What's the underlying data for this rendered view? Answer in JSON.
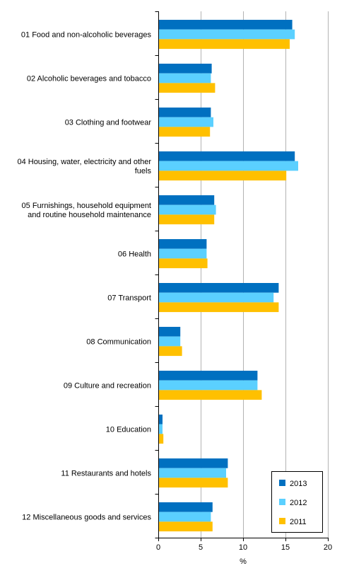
{
  "chart_data": {
    "type": "bar",
    "orientation": "horizontal",
    "categories": [
      [
        "01 Food and non-alcoholic beverages"
      ],
      [
        "02 Alcoholic beverages and tobacco"
      ],
      [
        "03 Clothing and footwear"
      ],
      [
        "04 Housing, water, electricity and other",
        "fuels"
      ],
      [
        "05 Furnishings, household equipment",
        "and routine household maintenance"
      ],
      [
        "06 Health"
      ],
      [
        "07 Transport"
      ],
      [
        "08 Communication"
      ],
      [
        "09 Culture and recreation"
      ],
      [
        "10 Education"
      ],
      [
        "11 Restaurants and hotels"
      ],
      [
        "12 Miscellaneous goods and services"
      ]
    ],
    "series": [
      {
        "name": "2013",
        "color": "#0070c0",
        "values": [
          15.8,
          6.3,
          6.2,
          16.1,
          6.6,
          5.7,
          14.2,
          2.6,
          11.7,
          0.5,
          8.2,
          6.4
        ]
      },
      {
        "name": "2012",
        "color": "#5bd0ff",
        "values": [
          16.1,
          6.2,
          6.5,
          16.5,
          6.8,
          5.7,
          13.6,
          2.6,
          11.7,
          0.5,
          8.0,
          6.2
        ]
      },
      {
        "name": "2011",
        "color": "#ffc000",
        "values": [
          15.5,
          6.7,
          6.1,
          15.1,
          6.6,
          5.8,
          14.2,
          2.8,
          12.2,
          0.6,
          8.2,
          6.4
        ]
      }
    ],
    "xlim": [
      0,
      20
    ],
    "xticks": [
      0,
      5,
      10,
      15,
      20
    ],
    "xlabel": "%",
    "ylabel": "",
    "title": "",
    "grid": true,
    "legend_position": "bottom-right"
  }
}
